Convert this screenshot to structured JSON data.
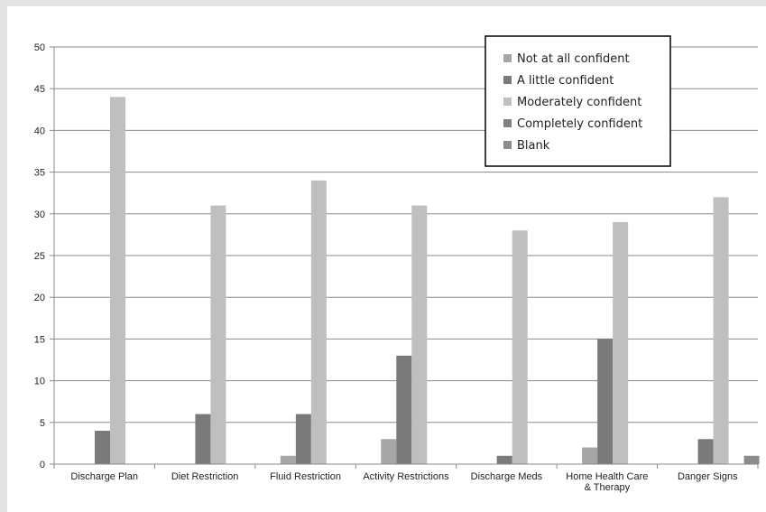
{
  "chart_data": {
    "type": "bar",
    "title": "",
    "xlabel": "",
    "ylabel": "",
    "ylim": [
      0,
      50
    ],
    "yticks": [
      0,
      5,
      10,
      15,
      20,
      25,
      30,
      35,
      40,
      45,
      50
    ],
    "grid": true,
    "legend_position": "top-right",
    "categories": [
      "Discharge Plan",
      "Diet Restriction",
      "Fluid Restriction",
      "Activity Restrictions",
      "Discharge Meds",
      "Home Health Care & Therapy",
      "Danger Signs"
    ],
    "series": [
      {
        "name": "Not at all confident",
        "color": "#a6a6a6",
        "values": [
          0,
          0,
          1,
          3,
          0,
          2,
          0
        ]
      },
      {
        "name": "A little confident",
        "color": "#7a7a7a",
        "values": [
          4,
          6,
          6,
          13,
          1,
          15,
          3
        ]
      },
      {
        "name": "Moderately confident",
        "color": "#bfbfbf",
        "values": [
          44,
          31,
          34,
          31,
          28,
          29,
          32
        ]
      },
      {
        "name": "Completely confident",
        "color": "#808080",
        "values": [
          0,
          0,
          0,
          0,
          0,
          0,
          0
        ]
      },
      {
        "name": "Blank",
        "color": "#8c8c8c",
        "values": [
          0,
          0,
          0,
          0,
          0,
          0,
          1
        ]
      }
    ]
  }
}
